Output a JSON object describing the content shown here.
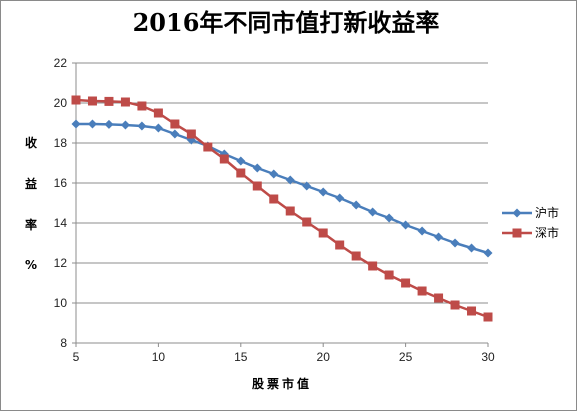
{
  "chart_data": {
    "type": "line",
    "title": "2016年不同市值打新收益率",
    "xlabel": "股票市值",
    "ylabel_chars": [
      "收",
      "益",
      "率",
      "%"
    ],
    "xlim": [
      5,
      30
    ],
    "ylim": [
      8,
      22
    ],
    "x_ticks": [
      5,
      10,
      15,
      20,
      25,
      30
    ],
    "y_ticks": [
      8,
      10,
      12,
      14,
      16,
      18,
      20,
      22
    ],
    "grid": "horizontal",
    "legend_position": "right",
    "x": [
      5,
      6,
      7,
      8,
      9,
      10,
      11,
      12,
      13,
      14,
      15,
      16,
      17,
      18,
      19,
      20,
      21,
      22,
      23,
      24,
      25,
      26,
      27,
      28,
      29,
      30
    ],
    "series": [
      {
        "name": "沪市",
        "color": "#4a7ebb",
        "marker": "diamond",
        "values": [
          18.95,
          18.95,
          18.93,
          18.9,
          18.85,
          18.75,
          18.45,
          18.15,
          17.85,
          17.45,
          17.1,
          16.75,
          16.45,
          16.15,
          15.85,
          15.55,
          15.25,
          14.9,
          14.55,
          14.25,
          13.9,
          13.6,
          13.3,
          13.0,
          12.75,
          12.5
        ]
      },
      {
        "name": "深市",
        "color": "#be4b48",
        "marker": "square",
        "values": [
          20.15,
          20.1,
          20.08,
          20.05,
          19.85,
          19.5,
          18.95,
          18.45,
          17.8,
          17.2,
          16.5,
          15.85,
          15.2,
          14.6,
          14.05,
          13.5,
          12.9,
          12.35,
          11.85,
          11.4,
          11.0,
          10.6,
          10.25,
          9.9,
          9.6,
          9.3
        ]
      }
    ]
  }
}
